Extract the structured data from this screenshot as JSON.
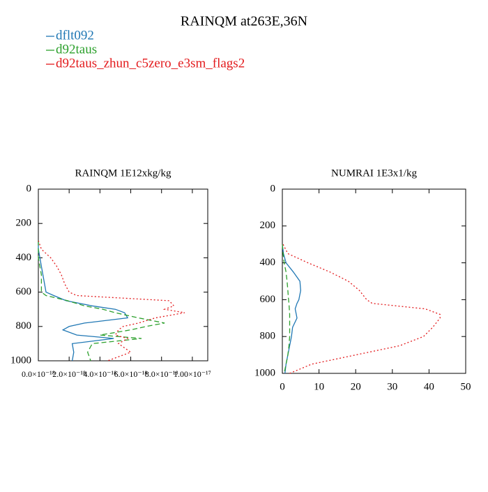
{
  "title": "RAINQM at263E,36N",
  "chart_data": [
    {
      "type": "line",
      "title": "RAINQM  1E12xkg/kg",
      "invert_y": true,
      "y": [
        300,
        350,
        400,
        450,
        500,
        550,
        600,
        620,
        650,
        680,
        700,
        720,
        750,
        780,
        800,
        820,
        850,
        870,
        900,
        950,
        1000
      ],
      "xlim": [
        0,
        1.1e-17
      ],
      "ylim": [
        0,
        1000
      ],
      "xticks": [
        {
          "value": 0,
          "label": "0.0×10⁻¹⁸"
        },
        {
          "value": 2e-18,
          "label": "2.0×10⁻¹⁸"
        },
        {
          "value": 4e-18,
          "label": "4.0×10⁻¹⁸"
        },
        {
          "value": 6e-18,
          "label": "6.0×10⁻¹⁸"
        },
        {
          "value": 8e-18,
          "label": "8.0×10⁻¹⁸"
        },
        {
          "value": 1e-17,
          "label": "1.00×10⁻¹⁷"
        }
      ],
      "yticks": [
        0,
        200,
        400,
        600,
        800,
        1000
      ],
      "series": [
        {
          "name": "dflt092",
          "color": "#1f77b4",
          "dash": "none",
          "values": [
            0,
            0,
            1e-19,
            2e-19,
            3e-19,
            4e-19,
            5e-19,
            1e-18,
            1.8e-18,
            3.5e-18,
            5e-18,
            5.6e-18,
            5.8e-18,
            3e-18,
            2e-18,
            1.6e-18,
            2.5e-18,
            4.9e-18,
            2.2e-18,
            2.3e-18,
            2.2e-18
          ]
        },
        {
          "name": "d92taus",
          "color": "#2ca02c",
          "dash": "7 4",
          "values": [
            0,
            0,
            0,
            1e-19,
            2e-19,
            2e-19,
            2e-19,
            5e-19,
            1.9e-18,
            3e-18,
            4.2e-18,
            5e-18,
            6.5e-18,
            8.2e-18,
            7e-18,
            6e-18,
            4e-18,
            6.7e-18,
            3.5e-18,
            3.2e-18,
            3.4e-18
          ]
        },
        {
          "name": "d92taus_zhun_c5zero_e3sm_flags2",
          "color": "#e31a1c",
          "dash": "2 3",
          "values": [
            0,
            2e-19,
            8e-19,
            1.2e-18,
            1.5e-18,
            1.7e-18,
            2e-18,
            2.5e-18,
            8.5e-18,
            8.8e-18,
            8.2e-18,
            9.5e-18,
            7.6e-18,
            6.5e-18,
            5.5e-18,
            5.2e-18,
            5e-18,
            5.8e-18,
            5.2e-18,
            6e-18,
            4.5e-18
          ]
        }
      ]
    },
    {
      "type": "line",
      "title": "NUMRAI  1E3x1/kg",
      "invert_y": true,
      "y": [
        300,
        350,
        400,
        450,
        500,
        550,
        600,
        620,
        650,
        680,
        700,
        750,
        800,
        850,
        900,
        950,
        1000
      ],
      "xlim": [
        0,
        50
      ],
      "ylim": [
        0,
        1000
      ],
      "xticks": [
        0,
        10,
        20,
        30,
        40,
        50
      ],
      "yticks": [
        0,
        200,
        400,
        600,
        800,
        1000
      ],
      "series": [
        {
          "color": "#1f77b4",
          "dash": "none",
          "values": [
            0,
            0.3,
            1,
            3,
            4.8,
            5,
            4.5,
            4,
            3.5,
            3.8,
            4,
            2.8,
            2.5,
            2,
            1.5,
            1,
            0.7
          ]
        },
        {
          "color": "#2ca02c",
          "dash": "7 4",
          "values": [
            0,
            0.2,
            0.5,
            1,
            1.3,
            1.5,
            1.7,
            1.8,
            1.9,
            2,
            2,
            2,
            2,
            1.8,
            1.5,
            1,
            0.5
          ]
        },
        {
          "color": "#e31a1c",
          "dash": "2 3",
          "values": [
            0.2,
            1.5,
            7,
            13,
            18,
            21,
            23,
            24.5,
            39,
            43,
            43,
            41,
            38.5,
            32,
            20,
            8,
            2
          ]
        }
      ]
    }
  ]
}
